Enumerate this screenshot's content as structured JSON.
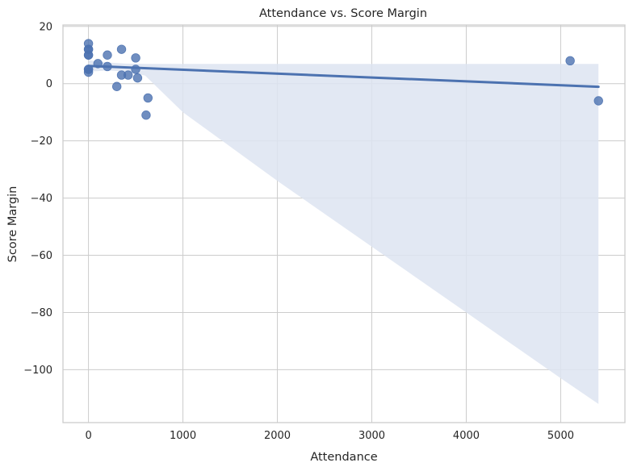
{
  "chart_data": {
    "type": "scatter",
    "title": "Attendance vs. Score Margin",
    "xlabel": "Attendance",
    "ylabel": "Score Margin",
    "xlim": [
      -270,
      5680
    ],
    "ylim": [
      -118.5,
      20.5
    ],
    "xticks": [
      0,
      1000,
      2000,
      3000,
      4000,
      5000
    ],
    "yticks": [
      -100,
      -80,
      -60,
      -40,
      -20,
      0,
      20
    ],
    "xtick_labels": [
      "0",
      "1000",
      "2000",
      "3000",
      "4000",
      "5000"
    ],
    "ytick_labels": [
      "−100",
      "−80",
      "−60",
      "−40",
      "−20",
      "0",
      "20"
    ],
    "grid": true,
    "points": {
      "x": [
        0,
        0,
        0,
        0,
        0,
        0,
        0,
        0,
        100,
        200,
        200,
        300,
        350,
        350,
        420,
        500,
        500,
        520,
        610,
        630,
        5100,
        5400
      ],
      "y": [
        14,
        12,
        12,
        10,
        10,
        5,
        4,
        5,
        7,
        10,
        6,
        -1,
        12,
        3,
        3,
        9,
        5,
        2,
        -11,
        -5,
        8,
        -6
      ]
    },
    "regression": {
      "x": [
        0,
        5400
      ],
      "y": [
        6.2,
        -1.1
      ]
    },
    "confidence_band": {
      "x": [
        0,
        200,
        400,
        600,
        1000,
        2000,
        3000,
        4000,
        5000,
        5400
      ],
      "lower": [
        4.2,
        4.6,
        4.3,
        2.8,
        -10,
        -34,
        -57,
        -80,
        -103,
        -112
      ],
      "upper": [
        8.2,
        7.4,
        7.0,
        6.9,
        6.9,
        6.9,
        6.9,
        6.9,
        6.9,
        6.9
      ]
    },
    "colors": {
      "point": "#4c72b0",
      "line": "#4c72b0",
      "band": "#dde4f1",
      "grid": "#cccccc",
      "text": "#262626"
    }
  }
}
